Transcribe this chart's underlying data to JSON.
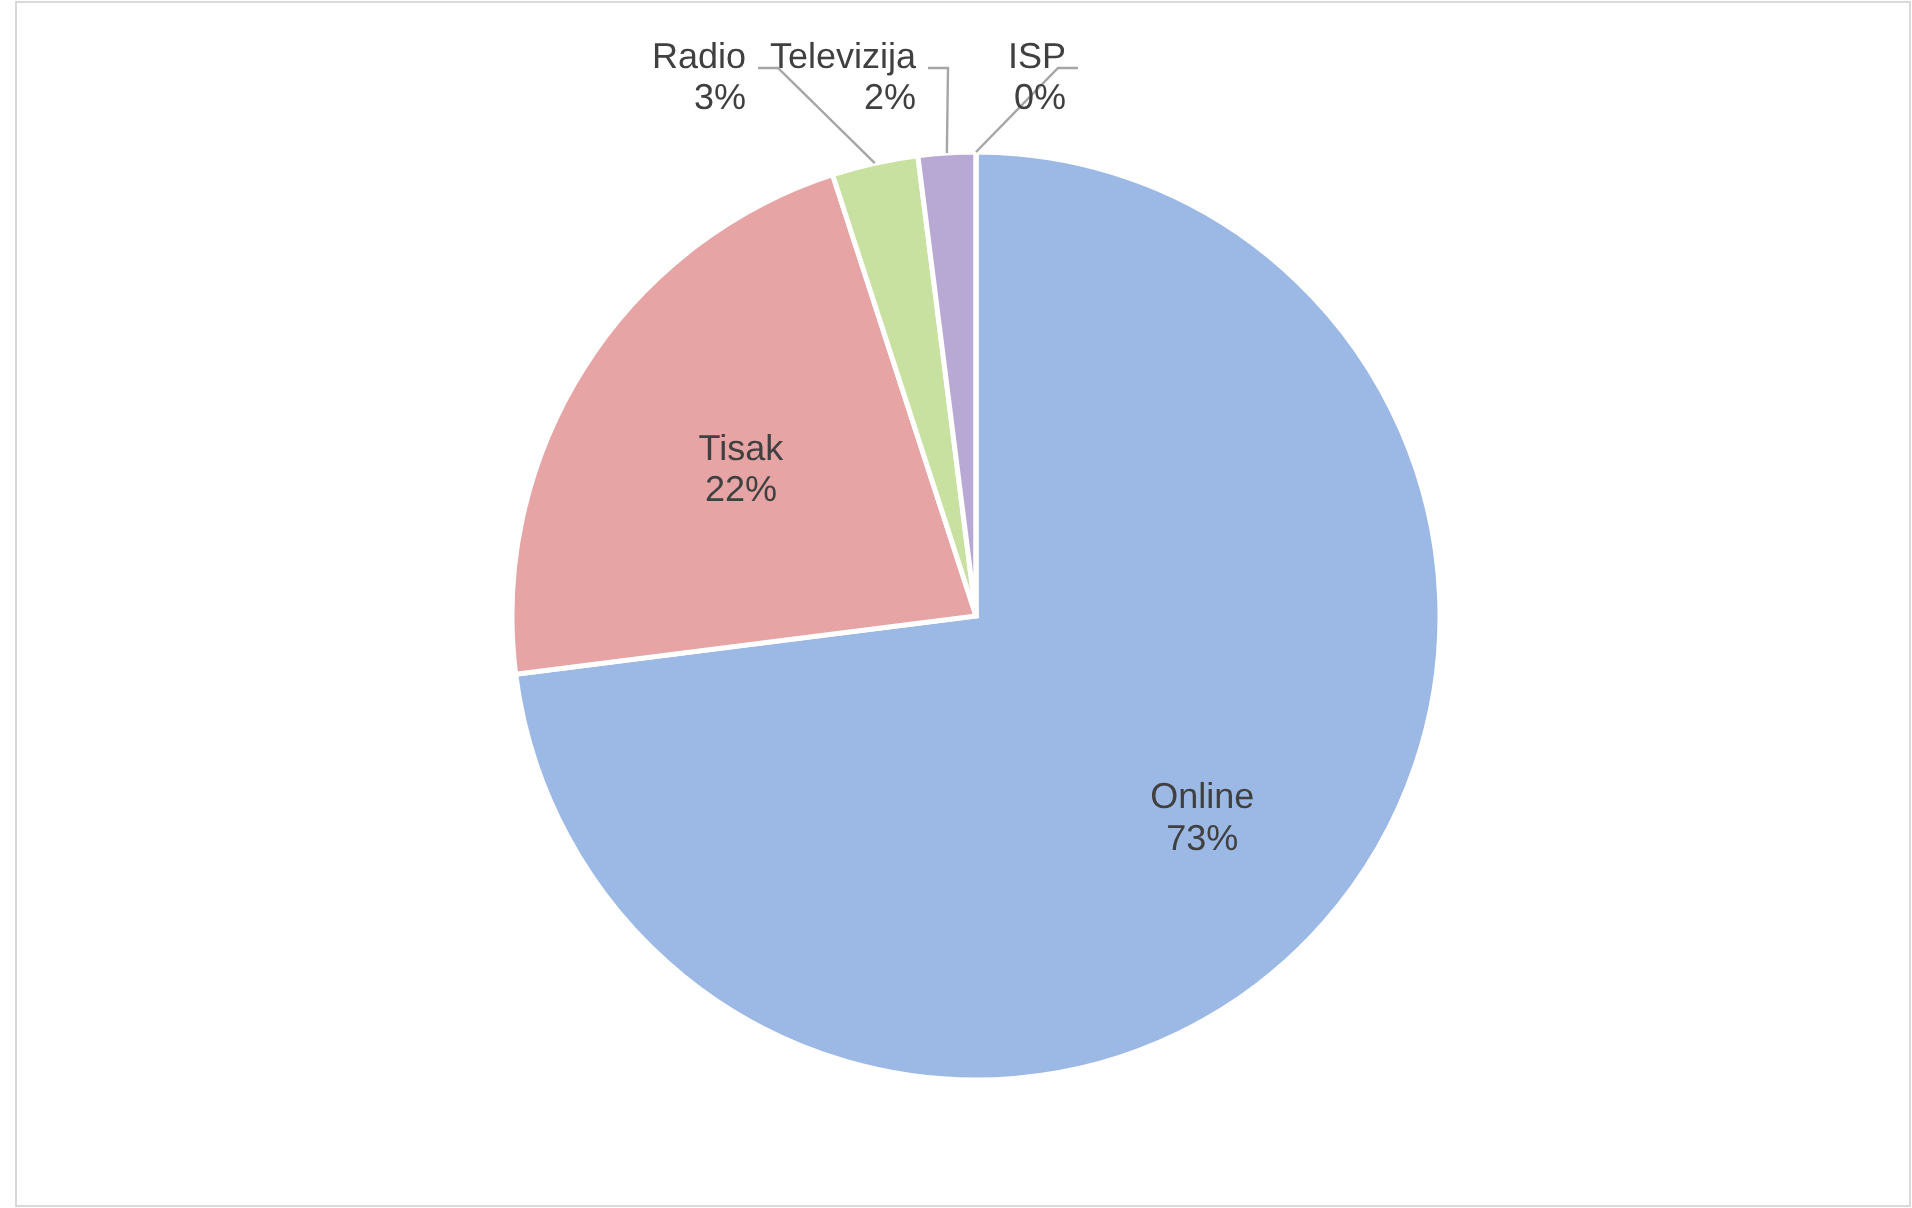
{
  "chart_data": {
    "type": "pie",
    "categories": [
      "Online",
      "Tisak",
      "Radio",
      "Televizija",
      "ISP"
    ],
    "values": [
      73,
      22,
      3,
      2,
      0
    ],
    "colors": [
      "#9cb8e4",
      "#e6a4a4",
      "#c8e0a0",
      "#b8a8d4",
      "#d0d0d0"
    ],
    "value_labels": [
      "73%",
      "22%",
      "3%",
      "2%",
      "0%"
    ]
  }
}
